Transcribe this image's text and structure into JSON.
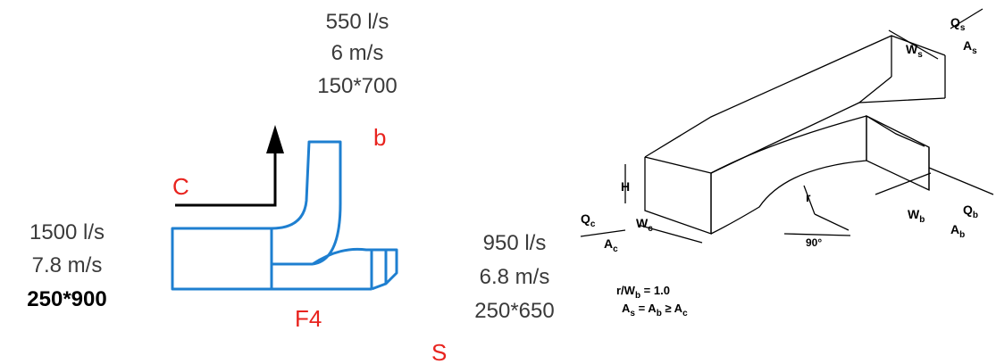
{
  "colors": {
    "duct_blue": "#1e7fd0",
    "label_red": "#e8231e",
    "text_gray": "#3a3a3a",
    "black": "#000000"
  },
  "branch": {
    "flow": "550 l/s",
    "velocity": "6 m/s",
    "size": "150*700"
  },
  "inlet": {
    "flow": "1500 l/s",
    "velocity": "7.8 m/s",
    "size": "250*900"
  },
  "straight": {
    "flow": "950 l/s",
    "velocity": "6.8 m/s",
    "size": "250*650"
  },
  "labels": {
    "c": "C",
    "b": "b",
    "f4": "F4",
    "s": "S"
  },
  "iso": {
    "qs": "Q",
    "qs_sub": "s",
    "as": "A",
    "as_sub": "s",
    "ws": "W",
    "ws_sub": "s",
    "qb": "Q",
    "qb_sub": "b",
    "ab": "A",
    "ab_sub": "b",
    "wb": "W",
    "wb_sub": "b",
    "qc": "Q",
    "qc_sub": "c",
    "ac": "A",
    "ac_sub": "c",
    "wc": "W",
    "wc_sub": "c",
    "h": "H",
    "r": "r",
    "angle": "90°",
    "ratio_a": "r/W",
    "ratio_sub": "b",
    "ratio_b": " = 1.0",
    "eq1": "A",
    "eq1_sub": "s",
    "eq2": " = A",
    "eq2_sub": "b",
    "eq3": " ≥ A",
    "eq3_sub": "c"
  }
}
